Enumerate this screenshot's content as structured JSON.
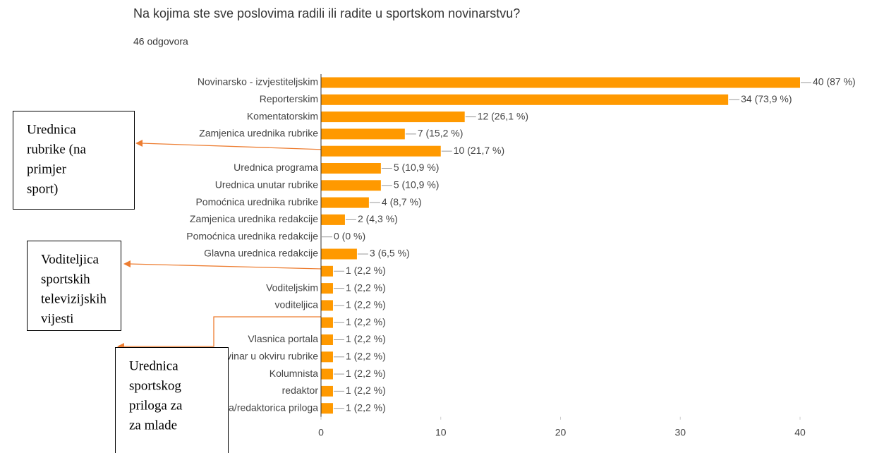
{
  "chart_data": {
    "type": "barh",
    "title": "Na kojima ste sve poslovima radili ili radite u sportskom novinarstvu?",
    "subtitle": "46 odgovora",
    "categories": [
      "Novinarsko - izvjestiteljskim",
      "Reporterskim",
      "Komentatorskim",
      "Zamjenica urednika rubrike",
      null,
      "Urednica programa",
      "Urednica unutar rubrike",
      "Pomoćnica urednika rubrike",
      "Zamjenica urednika redakcije",
      "Pomoćnica urednika redakcije",
      "Glavna urednica redakcije",
      null,
      "Voditeljskim",
      "voditeljica",
      null,
      "Vlasnica portala",
      "Novinar u okviru rubrike",
      "Kolumnista",
      "redaktor",
      "Urednica/redaktorica priloga"
    ],
    "values": [
      40,
      34,
      12,
      7,
      10,
      5,
      5,
      4,
      2,
      0,
      3,
      1,
      1,
      1,
      1,
      1,
      1,
      1,
      1,
      1
    ],
    "value_labels": [
      "40 (87 %)",
      "34 (73,9 %)",
      "12 (26,1 %)",
      "7 (15,2 %)",
      "10 (21,7 %)",
      "5 (10,9 %)",
      "5 (10,9 %)",
      "4 (8,7 %)",
      "2 (4,3 %)",
      "0 (0 %)",
      "3 (6,5 %)",
      "1 (2,2 %)",
      "1 (2,2 %)",
      "1 (2,2 %)",
      "1 (2,2 %)",
      "1 (2,2 %)",
      "1 (2,2 %)",
      "1 (2,2 %)",
      "1 (2,2 %)",
      "1 (2,2 %)"
    ],
    "color": "#ff9900",
    "xlim": [
      0,
      40
    ],
    "xticks": [
      0,
      10,
      20,
      30,
      40
    ],
    "annotations": [
      {
        "lines": [
          "Urednica",
          "rubrike (na",
          "primjer",
          "sport)"
        ]
      },
      {
        "lines": [
          "Voditeljica",
          "sportskih",
          "televizijskih",
          "vijesti"
        ]
      },
      {
        "lines": [
          "Urednica",
          "sportskog",
          "priloga za",
          "za mlade"
        ]
      }
    ]
  }
}
